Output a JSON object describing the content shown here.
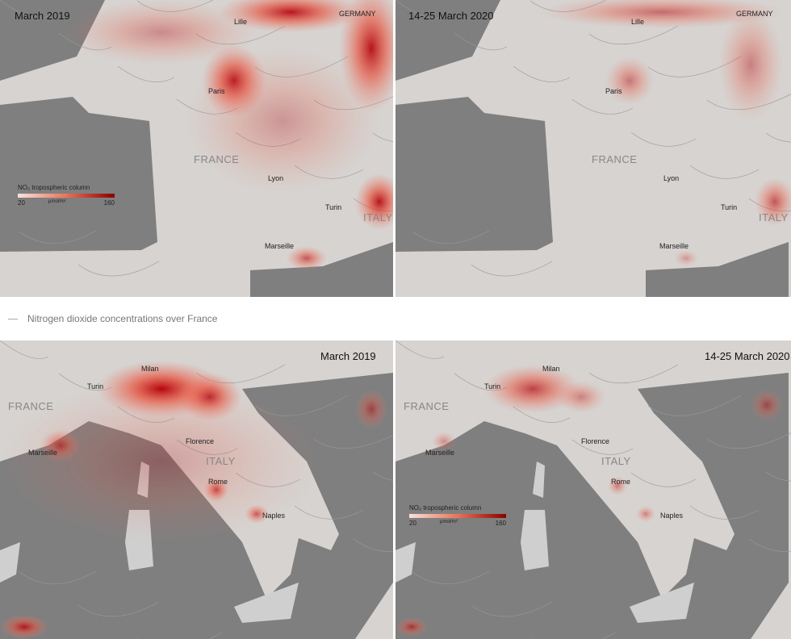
{
  "panels": [
    {
      "title": "March 2019",
      "labels": [
        "Lille",
        "GERMANY",
        "Paris",
        "FRANCE",
        "Lyon",
        "Turin",
        "ITALY",
        "Marseille"
      ]
    },
    {
      "title": "14-25 March 2020",
      "labels": [
        "Lille",
        "GERMANY",
        "Paris",
        "FRANCE",
        "Lyon",
        "Turin",
        "ITALY",
        "Marseille"
      ]
    },
    {
      "title": "March 2019",
      "labels": [
        "Milan",
        "Turin",
        "FRANCE",
        "Marseille",
        "Florence",
        "ITALY",
        "Rome",
        "Naples"
      ]
    },
    {
      "title": "14-25 March 2020",
      "labels": [
        "Milan",
        "Turin",
        "FRANCE",
        "Marseille",
        "Florence",
        "ITALY",
        "Rome",
        "Naples"
      ]
    }
  ],
  "legend": {
    "title": "NO₂ tropospheric column",
    "min": 20,
    "unit": "μmol/m²",
    "max": 160
  },
  "caption": "Nitrogen dioxide concentrations over France"
}
